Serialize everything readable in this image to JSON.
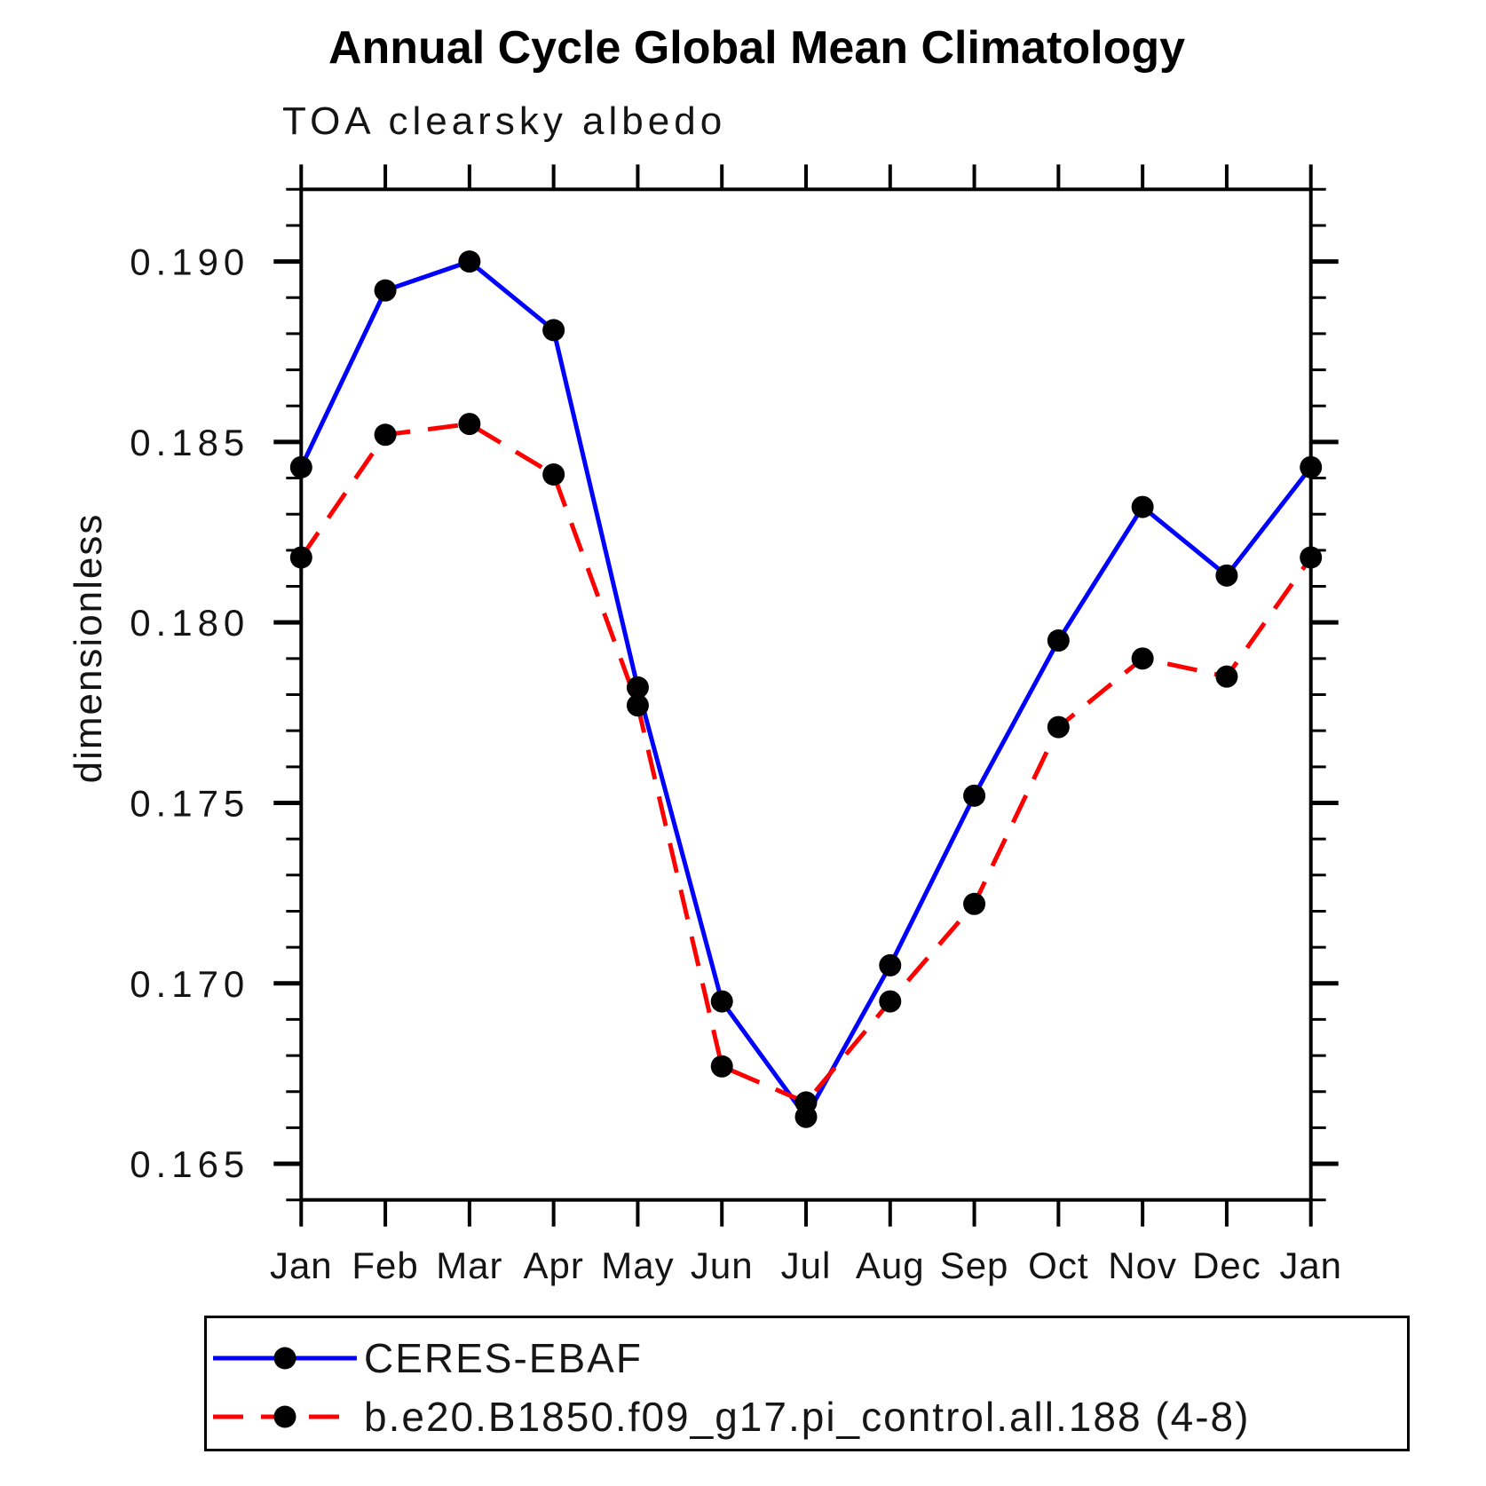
{
  "title": "Annual Cycle Global Mean Climatology",
  "subtitle": "TOA clearsky albedo",
  "ylabel": "dimensionless",
  "frame_color": "#000000",
  "marker_color": "#000000",
  "legend": {
    "items": [
      {
        "label": "CERES-EBAF",
        "color": "#0000ff",
        "style": "solid"
      },
      {
        "label": "b.e20.B1850.f09_g17.pi_control.all.188 (4-8)",
        "color": "#ff0000",
        "style": "dashed"
      }
    ]
  },
  "chart_data": {
    "type": "line",
    "title": "Annual Cycle Global Mean Climatology",
    "subtitle": "TOA clearsky albedo",
    "xlabel": "",
    "ylabel": "dimensionless",
    "categories": [
      "Jan",
      "Feb",
      "Mar",
      "Apr",
      "May",
      "Jun",
      "Jul",
      "Aug",
      "Sep",
      "Oct",
      "Nov",
      "Dec",
      "Jan"
    ],
    "series": [
      {
        "name": "CERES-EBAF",
        "color": "#0000ff",
        "style": "solid",
        "marker": "circle",
        "values": [
          0.1843,
          0.1892,
          0.19,
          0.1881,
          0.1782,
          0.1695,
          0.1663,
          0.1705,
          0.1752,
          0.1795,
          0.1832,
          0.1813,
          0.1843
        ]
      },
      {
        "name": "b.e20.B1850.f09_g17.pi_control.all.188 (4-8)",
        "color": "#ff0000",
        "style": "dashed",
        "marker": "circle",
        "values": [
          0.1818,
          0.1852,
          0.1855,
          0.1841,
          0.1777,
          0.1677,
          0.1667,
          0.1695,
          0.1722,
          0.1771,
          0.179,
          0.1785,
          0.1818
        ]
      }
    ],
    "ylim": [
      0.164,
      0.192
    ],
    "yticks_major": [
      0.165,
      0.17,
      0.175,
      0.18,
      0.185,
      0.19
    ],
    "ytick_minor_step": 0.001,
    "ytick_label_decimals": 3,
    "grid": false,
    "legend_position": "bottom"
  }
}
